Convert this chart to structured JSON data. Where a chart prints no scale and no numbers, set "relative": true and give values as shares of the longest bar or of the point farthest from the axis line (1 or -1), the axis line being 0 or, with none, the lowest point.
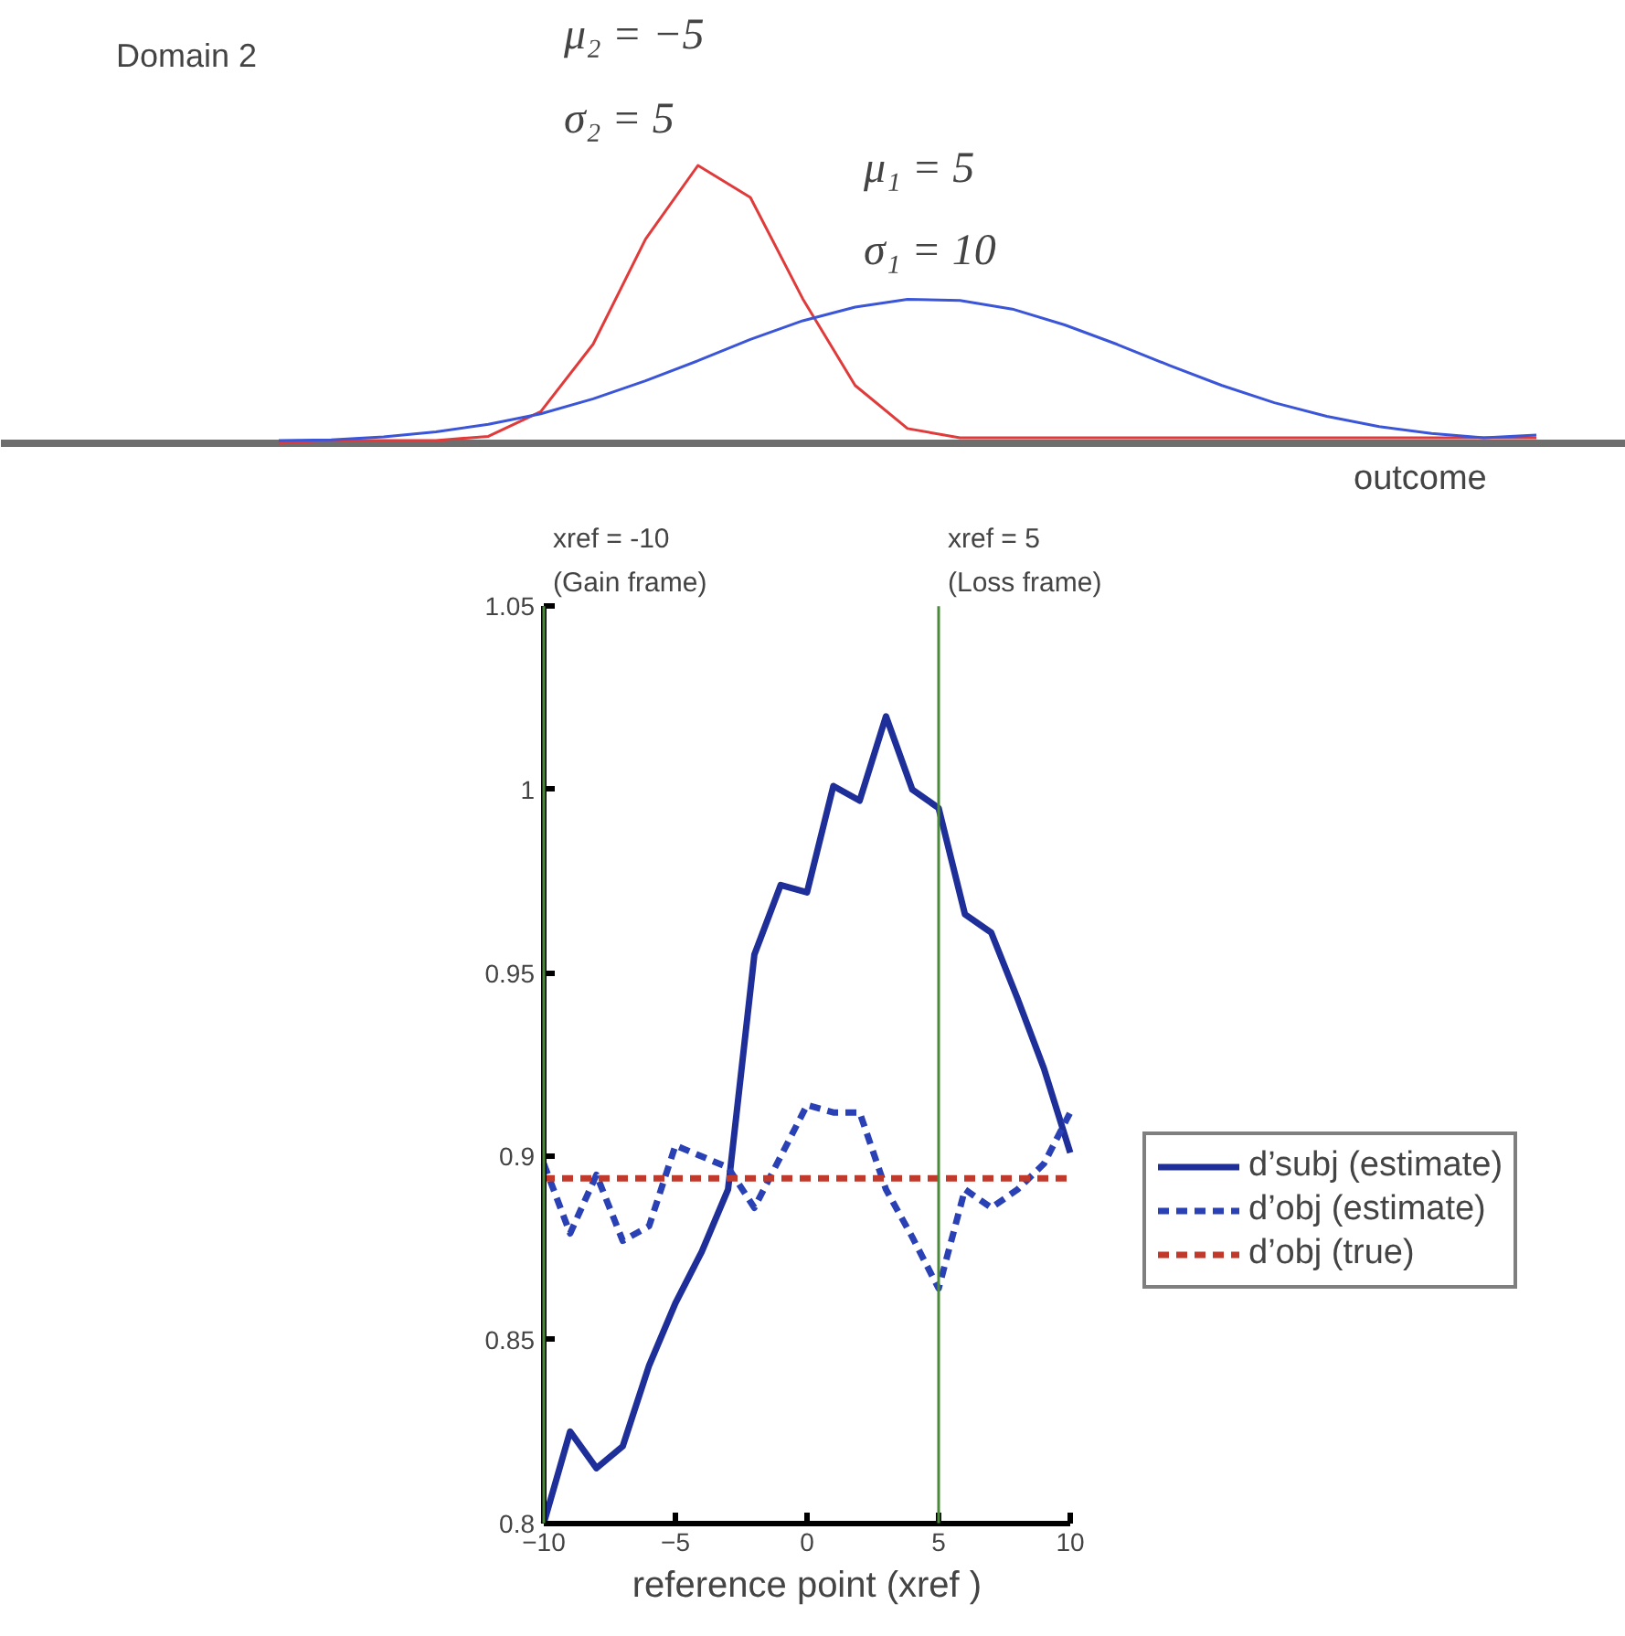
{
  "chart_data": [
    {
      "type": "line",
      "relative": true,
      "xlabel": "outcome",
      "legend": false,
      "tick_labels": false,
      "line_style": "solid",
      "annotations": [
        "Domain 2",
        "μ₂ = −5",
        "σ₂ = 5",
        "μ₁ = 5",
        "σ₁ = 10"
      ],
      "categories": [
        null,
        null,
        null,
        null,
        null,
        null,
        null,
        null,
        null,
        null,
        null,
        null,
        null,
        null,
        null,
        null,
        null,
        null,
        null,
        null,
        null,
        null,
        null,
        null,
        null
      ],
      "series": [
        {
          "color": "#e03a3a",
          "values": [
            0.0,
            0.01,
            0.01,
            0.01,
            0.025,
            0.114,
            0.357,
            0.735,
            1,
            0.885,
            0.52,
            0.208,
            0.053,
            0.02,
            0.02,
            0.02,
            0.02,
            0.02,
            0.02,
            0.02,
            0.02,
            0.02,
            0.02,
            0.02,
            0.02
          ]
        },
        {
          "color": "#3a55d8",
          "values": [
            0.01,
            0.012,
            0.023,
            0.041,
            0.068,
            0.106,
            0.16,
            0.225,
            0.297,
            0.374,
            0.441,
            0.49,
            0.518,
            0.514,
            0.483,
            0.426,
            0.356,
            0.28,
            0.208,
            0.146,
            0.097,
            0.06,
            0.035,
            0.02,
            0.03
          ]
        }
      ]
    },
    {
      "type": "line",
      "xlabel": "reference point (xref )",
      "legend": "right",
      "grid": false,
      "x": [
        -10,
        -9,
        -8,
        -7,
        -6,
        -5,
        -4,
        -3,
        -2,
        -1,
        0,
        1,
        2,
        3,
        4,
        5,
        6,
        7,
        8,
        9,
        10
      ],
      "xlim": [
        -10,
        10
      ],
      "xticks": [
        -10,
        -5,
        0,
        5,
        10
      ],
      "ylim": [
        0.8,
        1.05
      ],
      "yticks": [
        0.8,
        0.85,
        0.9,
        0.95,
        1,
        1.05
      ],
      "ref_lines": [
        {
          "axis": "x",
          "value": -10,
          "label": "xref = -10\n(Gain frame)",
          "color": "#4a8a3a"
        },
        {
          "axis": "x",
          "value": 5,
          "label": "xref = 5\n(Loss frame)",
          "color": "#4a8a3a"
        }
      ],
      "series": [
        {
          "name": "d’subj (estimate)",
          "color": "#1f2f9a",
          "line_style": "solid",
          "values": [
            0.8,
            0.825,
            0.815,
            0.821,
            0.843,
            0.86,
            0.874,
            0.891,
            0.955,
            0.974,
            0.972,
            1.001,
            0.997,
            1.02,
            1.0,
            0.995,
            0.966,
            0.961,
            0.943,
            0.924,
            0.901
          ]
        },
        {
          "name": "d’obj (estimate)",
          "color": "#2a40b5",
          "line_style": "dashed",
          "values": [
            0.898,
            0.879,
            0.895,
            0.877,
            0.881,
            0.903,
            0.9,
            0.897,
            0.886,
            0.9,
            0.914,
            0.912,
            0.912,
            0.891,
            0.878,
            0.864,
            0.891,
            0.886,
            0.891,
            0.898,
            0.912
          ]
        },
        {
          "name": "d’obj (true)",
          "color": "#c0392b",
          "line_style": "dashed",
          "x": [
            -10,
            10
          ],
          "values": [
            0.894,
            0.894
          ]
        }
      ]
    }
  ]
}
